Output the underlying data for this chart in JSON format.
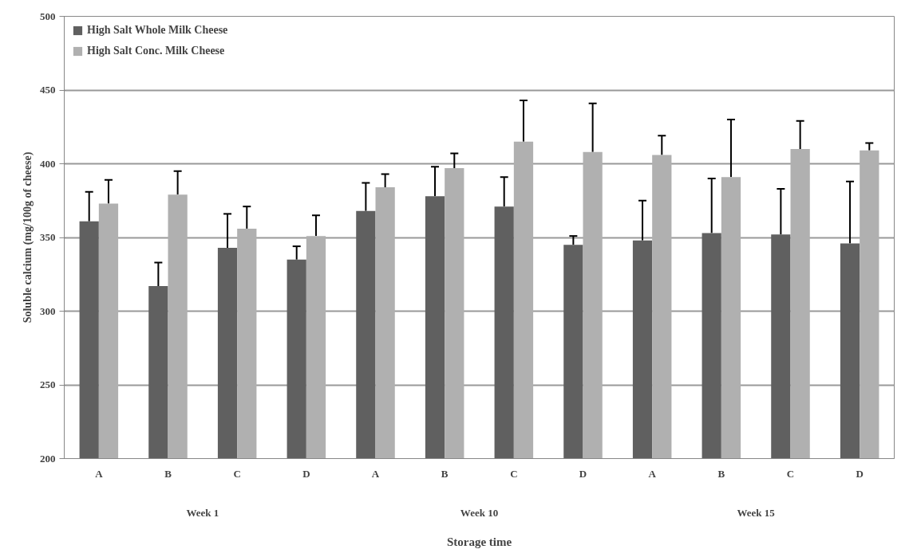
{
  "chart_data": {
    "type": "bar",
    "xlabel": "Storage time",
    "ylabel": "Soluble calcium (mg/100g of cheese)",
    "categories": [
      "A",
      "B",
      "C",
      "D",
      "A",
      "B",
      "C",
      "D",
      "A",
      "B",
      "C",
      "D"
    ],
    "annotations": [
      "Week 1",
      "Week 10",
      "Week 15"
    ],
    "series": [
      {
        "name": "High Salt Whole Milk Cheese",
        "color": "#606060",
        "values": [
          361,
          317,
          343,
          335,
          368,
          378,
          371,
          345,
          348,
          353,
          352,
          346
        ],
        "errors": [
          [
            361,
            381
          ],
          [
            317,
            333
          ],
          [
            343,
            366
          ],
          [
            335,
            344
          ],
          [
            368,
            387
          ],
          [
            378,
            398
          ],
          [
            371,
            391
          ],
          [
            345,
            351
          ],
          [
            348,
            375
          ],
          [
            353,
            390
          ],
          [
            352,
            383
          ],
          [
            346,
            388
          ]
        ]
      },
      {
        "name": "High Salt Conc. Milk Cheese",
        "color": "#b0b0b0",
        "values": [
          373,
          379,
          356,
          351,
          384,
          397,
          415,
          408,
          406,
          391,
          410,
          409
        ],
        "errors": [
          [
            373,
            389
          ],
          [
            379,
            395
          ],
          [
            356,
            371
          ],
          [
            351,
            365
          ],
          [
            384,
            393
          ],
          [
            397,
            407
          ],
          [
            415,
            443
          ],
          [
            408,
            441
          ],
          [
            406,
            419
          ],
          [
            391,
            430
          ],
          [
            410,
            429
          ],
          [
            409,
            414
          ]
        ]
      }
    ],
    "ylim": [
      200,
      500
    ],
    "yticks": [
      200,
      250,
      300,
      350,
      400,
      450,
      500
    ],
    "grid": "y",
    "legend": "top left"
  }
}
